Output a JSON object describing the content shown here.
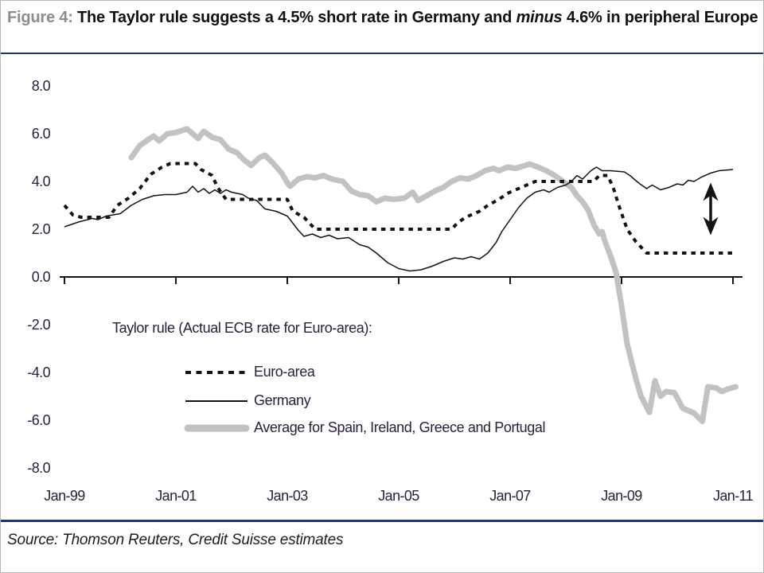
{
  "title": {
    "segments": [
      {
        "text": "Figure 4: "
      },
      {
        "text": "The Taylor rule suggests a 4.5% short rate in Germany and "
      },
      {
        "text": "minus"
      },
      {
        "text": " 4.6% in peripheral Europe"
      }
    ]
  },
  "source": "Source: Thomson Reuters, Credit Suisse estimates",
  "colors": {
    "accent_navy": "#1f3864",
    "figure_label_gray": "#8c8c8c",
    "series_black": "#141414",
    "series_gray": "#c2c2c2"
  },
  "chart_data": {
    "type": "line",
    "legend_title": "Taylor rule (Actual ECB rate for Euro-area):",
    "legend_position": "inside-lower-left",
    "grid": false,
    "ylim": [
      -8,
      8
    ],
    "xlim": [
      1998.9,
      2011.15
    ],
    "y_ticks": [
      {
        "label": "8.0",
        "value": 8
      },
      {
        "label": "6.0",
        "value": 6
      },
      {
        "label": "4.0",
        "value": 4
      },
      {
        "label": "2.0",
        "value": 2
      },
      {
        "label": "0.0",
        "value": 0
      },
      {
        "label": "-2.0",
        "value": -2
      },
      {
        "label": "-4.0",
        "value": -4
      },
      {
        "label": "-6.0",
        "value": -6
      },
      {
        "label": "-8.0",
        "value": -8
      }
    ],
    "x_ticks": [
      {
        "label": "Jan-99",
        "year": 1999
      },
      {
        "label": "Jan-01",
        "year": 2001
      },
      {
        "label": "Jan-03",
        "year": 2003
      },
      {
        "label": "Jan-05",
        "year": 2005
      },
      {
        "label": "Jan-07",
        "year": 2007
      },
      {
        "label": "Jan-09",
        "year": 2009
      },
      {
        "label": "Jan-11",
        "year": 2011
      }
    ],
    "series": [
      {
        "name": "Euro-area",
        "style": "dotted-black-thick",
        "points": [
          [
            1999.0,
            3.0
          ],
          [
            1999.15,
            2.6
          ],
          [
            1999.3,
            2.5
          ],
          [
            1999.8,
            2.5
          ],
          [
            1999.95,
            3.0
          ],
          [
            2000.15,
            3.3
          ],
          [
            2000.35,
            3.7
          ],
          [
            2000.55,
            4.3
          ],
          [
            2000.75,
            4.6
          ],
          [
            2000.9,
            4.75
          ],
          [
            2001.35,
            4.75
          ],
          [
            2001.45,
            4.5
          ],
          [
            2001.65,
            4.25
          ],
          [
            2001.75,
            3.75
          ],
          [
            2001.9,
            3.25
          ],
          [
            2003.0,
            3.25
          ],
          [
            2003.1,
            2.75
          ],
          [
            2003.3,
            2.5
          ],
          [
            2003.5,
            2.0
          ],
          [
            2005.95,
            2.0
          ],
          [
            2006.05,
            2.25
          ],
          [
            2006.2,
            2.5
          ],
          [
            2006.45,
            2.75
          ],
          [
            2006.6,
            3.0
          ],
          [
            2006.8,
            3.25
          ],
          [
            2006.95,
            3.5
          ],
          [
            2007.2,
            3.75
          ],
          [
            2007.45,
            4.0
          ],
          [
            2008.5,
            4.0
          ],
          [
            2008.6,
            4.25
          ],
          [
            2008.75,
            4.25
          ],
          [
            2008.85,
            3.75
          ],
          [
            2008.95,
            3.0
          ],
          [
            2009.1,
            2.0
          ],
          [
            2009.25,
            1.5
          ],
          [
            2009.35,
            1.25
          ],
          [
            2009.45,
            1.0
          ],
          [
            2011.05,
            1.0
          ]
        ]
      },
      {
        "name": "Germany",
        "style": "solid-black-thin",
        "points": [
          [
            1999.0,
            2.1
          ],
          [
            1999.25,
            2.3
          ],
          [
            1999.5,
            2.45
          ],
          [
            1999.6,
            2.4
          ],
          [
            1999.75,
            2.55
          ],
          [
            2000.0,
            2.65
          ],
          [
            2000.2,
            3.0
          ],
          [
            2000.4,
            3.25
          ],
          [
            2000.6,
            3.4
          ],
          [
            2000.8,
            3.45
          ],
          [
            2001.0,
            3.45
          ],
          [
            2001.2,
            3.55
          ],
          [
            2001.3,
            3.8
          ],
          [
            2001.4,
            3.55
          ],
          [
            2001.5,
            3.7
          ],
          [
            2001.6,
            3.5
          ],
          [
            2001.7,
            3.65
          ],
          [
            2001.8,
            3.5
          ],
          [
            2001.9,
            3.65
          ],
          [
            2002.0,
            3.55
          ],
          [
            2002.2,
            3.45
          ],
          [
            2002.3,
            3.3
          ],
          [
            2002.45,
            3.2
          ],
          [
            2002.6,
            2.85
          ],
          [
            2002.8,
            2.75
          ],
          [
            2003.0,
            2.55
          ],
          [
            2003.2,
            1.95
          ],
          [
            2003.3,
            1.7
          ],
          [
            2003.45,
            1.8
          ],
          [
            2003.6,
            1.65
          ],
          [
            2003.75,
            1.75
          ],
          [
            2003.9,
            1.6
          ],
          [
            2004.1,
            1.65
          ],
          [
            2004.3,
            1.35
          ],
          [
            2004.45,
            1.25
          ],
          [
            2004.6,
            1.0
          ],
          [
            2004.8,
            0.6
          ],
          [
            2005.0,
            0.35
          ],
          [
            2005.2,
            0.25
          ],
          [
            2005.4,
            0.3
          ],
          [
            2005.6,
            0.45
          ],
          [
            2005.8,
            0.65
          ],
          [
            2006.0,
            0.8
          ],
          [
            2006.15,
            0.75
          ],
          [
            2006.3,
            0.85
          ],
          [
            2006.45,
            0.75
          ],
          [
            2006.6,
            1.0
          ],
          [
            2006.75,
            1.45
          ],
          [
            2006.85,
            1.9
          ],
          [
            2007.0,
            2.4
          ],
          [
            2007.15,
            2.9
          ],
          [
            2007.3,
            3.3
          ],
          [
            2007.45,
            3.55
          ],
          [
            2007.6,
            3.65
          ],
          [
            2007.7,
            3.55
          ],
          [
            2007.85,
            3.75
          ],
          [
            2008.0,
            3.85
          ],
          [
            2008.1,
            4.0
          ],
          [
            2008.2,
            4.25
          ],
          [
            2008.3,
            4.1
          ],
          [
            2008.45,
            4.45
          ],
          [
            2008.55,
            4.6
          ],
          [
            2008.65,
            4.45
          ],
          [
            2008.8,
            4.45
          ],
          [
            2009.05,
            4.4
          ],
          [
            2009.15,
            4.25
          ],
          [
            2009.3,
            3.95
          ],
          [
            2009.45,
            3.7
          ],
          [
            2009.55,
            3.85
          ],
          [
            2009.7,
            3.65
          ],
          [
            2009.85,
            3.75
          ],
          [
            2010.0,
            3.9
          ],
          [
            2010.1,
            3.85
          ],
          [
            2010.2,
            4.05
          ],
          [
            2010.3,
            4.0
          ],
          [
            2010.45,
            4.2
          ],
          [
            2010.6,
            4.35
          ],
          [
            2010.75,
            4.45
          ],
          [
            2011.0,
            4.5
          ]
        ]
      },
      {
        "name": "Average for Spain, Ireland, Greece and Portugal",
        "style": "solid-gray-thick",
        "points": [
          [
            2000.2,
            5.0
          ],
          [
            2000.35,
            5.5
          ],
          [
            2000.5,
            5.75
          ],
          [
            2000.6,
            5.9
          ],
          [
            2000.7,
            5.7
          ],
          [
            2000.85,
            6.0
          ],
          [
            2001.0,
            6.05
          ],
          [
            2001.2,
            6.2
          ],
          [
            2001.3,
            6.0
          ],
          [
            2001.4,
            5.8
          ],
          [
            2001.5,
            6.1
          ],
          [
            2001.65,
            5.85
          ],
          [
            2001.8,
            5.75
          ],
          [
            2001.95,
            5.35
          ],
          [
            2002.1,
            5.2
          ],
          [
            2002.2,
            4.95
          ],
          [
            2002.35,
            4.67
          ],
          [
            2002.5,
            5.0
          ],
          [
            2002.6,
            5.1
          ],
          [
            2002.75,
            4.75
          ],
          [
            2002.9,
            4.35
          ],
          [
            2003.0,
            3.95
          ],
          [
            2003.05,
            3.8
          ],
          [
            2003.2,
            4.1
          ],
          [
            2003.35,
            4.2
          ],
          [
            2003.5,
            4.15
          ],
          [
            2003.65,
            4.25
          ],
          [
            2003.8,
            4.1
          ],
          [
            2004.0,
            4.0
          ],
          [
            2004.15,
            3.6
          ],
          [
            2004.3,
            3.45
          ],
          [
            2004.45,
            3.4
          ],
          [
            2004.6,
            3.15
          ],
          [
            2004.75,
            3.3
          ],
          [
            2004.9,
            3.25
          ],
          [
            2005.1,
            3.3
          ],
          [
            2005.25,
            3.55
          ],
          [
            2005.35,
            3.2
          ],
          [
            2005.5,
            3.4
          ],
          [
            2005.65,
            3.6
          ],
          [
            2005.8,
            3.75
          ],
          [
            2005.95,
            4.0
          ],
          [
            2006.1,
            4.15
          ],
          [
            2006.25,
            4.1
          ],
          [
            2006.4,
            4.25
          ],
          [
            2006.55,
            4.45
          ],
          [
            2006.7,
            4.55
          ],
          [
            2006.8,
            4.45
          ],
          [
            2006.95,
            4.6
          ],
          [
            2007.1,
            4.55
          ],
          [
            2007.25,
            4.65
          ],
          [
            2007.35,
            4.73
          ],
          [
            2007.5,
            4.6
          ],
          [
            2007.65,
            4.45
          ],
          [
            2007.8,
            4.25
          ],
          [
            2007.95,
            4.0
          ],
          [
            2008.1,
            3.75
          ],
          [
            2008.2,
            3.4
          ],
          [
            2008.3,
            3.15
          ],
          [
            2008.4,
            2.8
          ],
          [
            2008.5,
            2.2
          ],
          [
            2008.6,
            1.8
          ],
          [
            2008.65,
            1.9
          ],
          [
            2008.7,
            1.5
          ],
          [
            2008.8,
            0.9
          ],
          [
            2008.9,
            0.2
          ],
          [
            2009.0,
            -1.2
          ],
          [
            2009.1,
            -2.8
          ],
          [
            2009.25,
            -4.2
          ],
          [
            2009.35,
            -5.0
          ],
          [
            2009.5,
            -5.67
          ],
          [
            2009.6,
            -4.35
          ],
          [
            2009.7,
            -5.0
          ],
          [
            2009.8,
            -4.8
          ],
          [
            2009.95,
            -4.85
          ],
          [
            2010.1,
            -5.5
          ],
          [
            2010.3,
            -5.7
          ],
          [
            2010.45,
            -6.05
          ],
          [
            2010.55,
            -4.6
          ],
          [
            2010.7,
            -4.65
          ],
          [
            2010.8,
            -4.8
          ],
          [
            2010.9,
            -4.7
          ],
          [
            2011.05,
            -4.6
          ]
        ]
      }
    ],
    "annotation_arrow": {
      "shape": "vertical-double-arrow",
      "x_year": 2010.6,
      "value_top": 3.95,
      "value_bottom": 1.75
    }
  }
}
